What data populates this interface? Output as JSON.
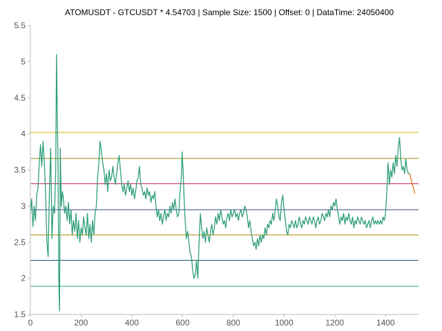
{
  "chart_data": {
    "type": "line",
    "title": "ATOMUSDT - GTCUSDT * 4.54703 | Sample Size: 1500 | Offset: 0 | DataTime: 24050400",
    "xlabel": "",
    "ylabel": "",
    "xlim": [
      0,
      1530
    ],
    "ylim": [
      1.5,
      5.5
    ],
    "x_ticks": [
      0,
      200,
      400,
      600,
      800,
      1000,
      1200,
      1400
    ],
    "y_ticks": [
      1.5,
      2,
      2.5,
      3,
      3.5,
      4,
      4.5,
      5,
      5.5
    ],
    "grid": false,
    "legend": "none",
    "series": [
      {
        "role": "main",
        "color": "#2e9e7a",
        "points": [
          [
            0,
            2.9
          ],
          [
            5,
            3.1
          ],
          [
            10,
            2.72
          ],
          [
            15,
            3.0
          ],
          [
            20,
            2.8
          ],
          [
            25,
            3.15
          ],
          [
            30,
            3.25
          ],
          [
            35,
            3.6
          ],
          [
            40,
            3.85
          ],
          [
            45,
            3.55
          ],
          [
            50,
            3.9
          ],
          [
            55,
            3.6
          ],
          [
            60,
            3.2
          ],
          [
            65,
            2.5
          ],
          [
            70,
            2.3
          ],
          [
            75,
            3.2
          ],
          [
            80,
            3.8
          ],
          [
            85,
            2.55
          ],
          [
            90,
            3.0
          ],
          [
            95,
            2.9
          ],
          [
            100,
            3.5
          ],
          [
            103,
            5.1
          ],
          [
            106,
            4.3
          ],
          [
            109,
            3.6
          ],
          [
            112,
            2.0
          ],
          [
            115,
            1.55
          ],
          [
            118,
            3.8
          ],
          [
            122,
            3.0
          ],
          [
            126,
            3.2
          ],
          [
            130,
            3.1
          ],
          [
            135,
            2.9
          ],
          [
            140,
            3.0
          ],
          [
            145,
            2.8
          ],
          [
            150,
            3.05
          ],
          [
            155,
            2.75
          ],
          [
            160,
            2.95
          ],
          [
            165,
            2.6
          ],
          [
            170,
            2.8
          ],
          [
            175,
            2.65
          ],
          [
            180,
            2.9
          ],
          [
            185,
            2.55
          ],
          [
            190,
            2.8
          ],
          [
            195,
            2.5
          ],
          [
            200,
            2.7
          ],
          [
            205,
            2.6
          ],
          [
            210,
            2.85
          ],
          [
            215,
            2.7
          ],
          [
            220,
            2.6
          ],
          [
            225,
            2.9
          ],
          [
            230,
            2.55
          ],
          [
            235,
            2.75
          ],
          [
            240,
            2.5
          ],
          [
            245,
            2.8
          ],
          [
            250,
            2.6
          ],
          [
            255,
            2.9
          ],
          [
            260,
            3.0
          ],
          [
            265,
            3.4
          ],
          [
            270,
            3.6
          ],
          [
            275,
            3.9
          ],
          [
            280,
            3.75
          ],
          [
            285,
            3.6
          ],
          [
            290,
            3.5
          ],
          [
            295,
            3.3
          ],
          [
            300,
            3.45
          ],
          [
            305,
            3.2
          ],
          [
            310,
            3.5
          ],
          [
            315,
            3.35
          ],
          [
            320,
            3.4
          ],
          [
            325,
            3.55
          ],
          [
            330,
            3.4
          ],
          [
            335,
            3.3
          ],
          [
            340,
            3.45
          ],
          [
            345,
            3.6
          ],
          [
            350,
            3.7
          ],
          [
            355,
            3.5
          ],
          [
            360,
            3.3
          ],
          [
            365,
            3.2
          ],
          [
            370,
            3.3
          ],
          [
            375,
            3.15
          ],
          [
            380,
            3.25
          ],
          [
            385,
            3.35
          ],
          [
            390,
            3.2
          ],
          [
            395,
            3.3
          ],
          [
            400,
            3.15
          ],
          [
            405,
            3.25
          ],
          [
            410,
            3.1
          ],
          [
            415,
            3.2
          ],
          [
            420,
            3.35
          ],
          [
            425,
            3.4
          ],
          [
            430,
            3.55
          ],
          [
            435,
            3.3
          ],
          [
            440,
            3.25
          ],
          [
            445,
            3.15
          ],
          [
            450,
            3.2
          ],
          [
            455,
            3.1
          ],
          [
            460,
            3.25
          ],
          [
            465,
            3.15
          ],
          [
            470,
            3.2
          ],
          [
            475,
            3.05
          ],
          [
            480,
            3.15
          ],
          [
            485,
            3.1
          ],
          [
            490,
            3.2
          ],
          [
            495,
            3.0
          ],
          [
            500,
            2.85
          ],
          [
            505,
            2.95
          ],
          [
            510,
            2.8
          ],
          [
            515,
            2.9
          ],
          [
            520,
            2.75
          ],
          [
            525,
            2.85
          ],
          [
            530,
            2.95
          ],
          [
            535,
            2.8
          ],
          [
            540,
            2.9
          ],
          [
            545,
            2.85
          ],
          [
            550,
            3.0
          ],
          [
            555,
            2.9
          ],
          [
            560,
            3.05
          ],
          [
            565,
            2.95
          ],
          [
            570,
            3.1
          ],
          [
            575,
            2.95
          ],
          [
            580,
            2.85
          ],
          [
            585,
            2.9
          ],
          [
            590,
            3.2
          ],
          [
            595,
            3.4
          ],
          [
            598,
            3.75
          ],
          [
            602,
            3.5
          ],
          [
            606,
            3.1
          ],
          [
            610,
            2.8
          ],
          [
            615,
            2.55
          ],
          [
            620,
            2.65
          ],
          [
            625,
            2.5
          ],
          [
            630,
            2.35
          ],
          [
            635,
            2.3
          ],
          [
            640,
            2.1
          ],
          [
            645,
            2.0
          ],
          [
            650,
            2.05
          ],
          [
            655,
            2.25
          ],
          [
            660,
            2.0
          ],
          [
            665,
            2.5
          ],
          [
            670,
            2.9
          ],
          [
            675,
            2.7
          ],
          [
            680,
            2.55
          ],
          [
            685,
            2.65
          ],
          [
            690,
            2.5
          ],
          [
            695,
            2.7
          ],
          [
            700,
            2.6
          ],
          [
            705,
            2.5
          ],
          [
            710,
            2.65
          ],
          [
            715,
            2.75
          ],
          [
            720,
            2.6
          ],
          [
            725,
            2.7
          ],
          [
            730,
            2.85
          ],
          [
            735,
            2.75
          ],
          [
            740,
            2.9
          ],
          [
            745,
            2.8
          ],
          [
            750,
            2.95
          ],
          [
            755,
            2.85
          ],
          [
            760,
            2.75
          ],
          [
            765,
            2.8
          ],
          [
            770,
            2.7
          ],
          [
            775,
            2.85
          ],
          [
            780,
            2.9
          ],
          [
            785,
            2.8
          ],
          [
            790,
            2.95
          ],
          [
            795,
            2.85
          ],
          [
            800,
            2.9
          ],
          [
            805,
            2.95
          ],
          [
            810,
            2.85
          ],
          [
            815,
            2.9
          ],
          [
            820,
            2.8
          ],
          [
            825,
            2.9
          ],
          [
            830,
            2.95
          ],
          [
            835,
            2.85
          ],
          [
            840,
            2.9
          ],
          [
            845,
            3.0
          ],
          [
            850,
            2.95
          ],
          [
            855,
            2.85
          ],
          [
            860,
            2.7
          ],
          [
            865,
            2.8
          ],
          [
            870,
            2.65
          ],
          [
            875,
            2.55
          ],
          [
            880,
            2.45
          ],
          [
            885,
            2.5
          ],
          [
            890,
            2.4
          ],
          [
            895,
            2.55
          ],
          [
            900,
            2.45
          ],
          [
            905,
            2.6
          ],
          [
            910,
            2.5
          ],
          [
            915,
            2.6
          ],
          [
            920,
            2.55
          ],
          [
            925,
            2.7
          ],
          [
            930,
            2.6
          ],
          [
            935,
            2.75
          ],
          [
            940,
            2.7
          ],
          [
            945,
            2.8
          ],
          [
            950,
            2.75
          ],
          [
            955,
            2.9
          ],
          [
            960,
            2.8
          ],
          [
            965,
            2.95
          ],
          [
            970,
            3.1
          ],
          [
            975,
            3.0
          ],
          [
            980,
            2.85
          ],
          [
            985,
            2.8
          ],
          [
            990,
            3.05
          ],
          [
            995,
            3.15
          ],
          [
            1000,
            2.95
          ],
          [
            1005,
            2.8
          ],
          [
            1010,
            2.65
          ],
          [
            1015,
            2.6
          ],
          [
            1020,
            2.75
          ],
          [
            1025,
            2.7
          ],
          [
            1030,
            2.8
          ],
          [
            1035,
            2.75
          ],
          [
            1040,
            2.7
          ],
          [
            1045,
            2.8
          ],
          [
            1050,
            2.7
          ],
          [
            1055,
            2.75
          ],
          [
            1060,
            2.85
          ],
          [
            1065,
            2.75
          ],
          [
            1070,
            2.7
          ],
          [
            1075,
            2.8
          ],
          [
            1080,
            2.75
          ],
          [
            1085,
            2.85
          ],
          [
            1090,
            2.8
          ],
          [
            1095,
            2.75
          ],
          [
            1100,
            2.85
          ],
          [
            1105,
            2.8
          ],
          [
            1110,
            2.75
          ],
          [
            1115,
            2.85
          ],
          [
            1120,
            2.8
          ],
          [
            1125,
            2.7
          ],
          [
            1130,
            2.8
          ],
          [
            1135,
            2.85
          ],
          [
            1140,
            2.75
          ],
          [
            1145,
            2.8
          ],
          [
            1150,
            2.9
          ],
          [
            1155,
            2.85
          ],
          [
            1160,
            2.8
          ],
          [
            1165,
            2.9
          ],
          [
            1170,
            2.85
          ],
          [
            1175,
            2.95
          ],
          [
            1180,
            2.85
          ],
          [
            1185,
            3.0
          ],
          [
            1190,
            2.95
          ],
          [
            1195,
            3.05
          ],
          [
            1200,
            3.0
          ],
          [
            1205,
            3.1
          ],
          [
            1210,
            2.95
          ],
          [
            1215,
            2.85
          ],
          [
            1220,
            2.75
          ],
          [
            1225,
            2.85
          ],
          [
            1230,
            2.8
          ],
          [
            1235,
            2.9
          ],
          [
            1240,
            2.75
          ],
          [
            1245,
            2.85
          ],
          [
            1250,
            2.8
          ],
          [
            1255,
            2.9
          ],
          [
            1260,
            2.8
          ],
          [
            1265,
            2.75
          ],
          [
            1270,
            2.85
          ],
          [
            1275,
            2.7
          ],
          [
            1280,
            2.8
          ],
          [
            1285,
            2.75
          ],
          [
            1290,
            2.85
          ],
          [
            1295,
            2.8
          ],
          [
            1300,
            2.75
          ],
          [
            1305,
            2.85
          ],
          [
            1310,
            2.8
          ],
          [
            1315,
            2.75
          ],
          [
            1320,
            2.8
          ],
          [
            1325,
            2.7
          ],
          [
            1330,
            2.75
          ],
          [
            1335,
            2.8
          ],
          [
            1340,
            2.7
          ],
          [
            1345,
            2.8
          ],
          [
            1350,
            2.85
          ],
          [
            1355,
            2.75
          ],
          [
            1360,
            2.8
          ],
          [
            1365,
            2.75
          ],
          [
            1370,
            2.8
          ],
          [
            1375,
            2.75
          ],
          [
            1380,
            2.8
          ],
          [
            1385,
            2.75
          ],
          [
            1390,
            2.85
          ],
          [
            1395,
            2.8
          ],
          [
            1400,
            2.9
          ],
          [
            1405,
            3.2
          ],
          [
            1410,
            3.6
          ],
          [
            1415,
            3.3
          ],
          [
            1420,
            3.5
          ],
          [
            1425,
            3.4
          ],
          [
            1430,
            3.6
          ],
          [
            1435,
            3.45
          ],
          [
            1440,
            3.7
          ],
          [
            1445,
            3.55
          ],
          [
            1450,
            3.8
          ],
          [
            1455,
            3.95
          ],
          [
            1460,
            3.65
          ],
          [
            1465,
            3.5
          ],
          [
            1470,
            3.55
          ],
          [
            1475,
            3.45
          ],
          [
            1480,
            3.65
          ],
          [
            1485,
            3.5
          ],
          [
            1490,
            3.45
          ],
          [
            1495,
            3.45
          ]
        ]
      },
      {
        "role": "projection",
        "color": "#e07a1f",
        "points": [
          [
            1495,
            3.45
          ],
          [
            1500,
            3.38
          ],
          [
            1505,
            3.3
          ],
          [
            1510,
            3.25
          ],
          [
            1515,
            3.17
          ]
        ]
      }
    ],
    "horizontal_lines": [
      {
        "y": 4.02,
        "color": "#c9b800"
      },
      {
        "y": 3.66,
        "color": "#9a8a10"
      },
      {
        "y": 3.31,
        "color": "#c2185b"
      },
      {
        "y": 2.95,
        "color": "#3a3f8f"
      },
      {
        "y": 2.6,
        "color": "#b58a00"
      },
      {
        "y": 2.25,
        "color": "#1f4f5f"
      },
      {
        "y": 1.89,
        "color": "#16a085"
      }
    ],
    "axis_color": "#bbbbbb"
  }
}
